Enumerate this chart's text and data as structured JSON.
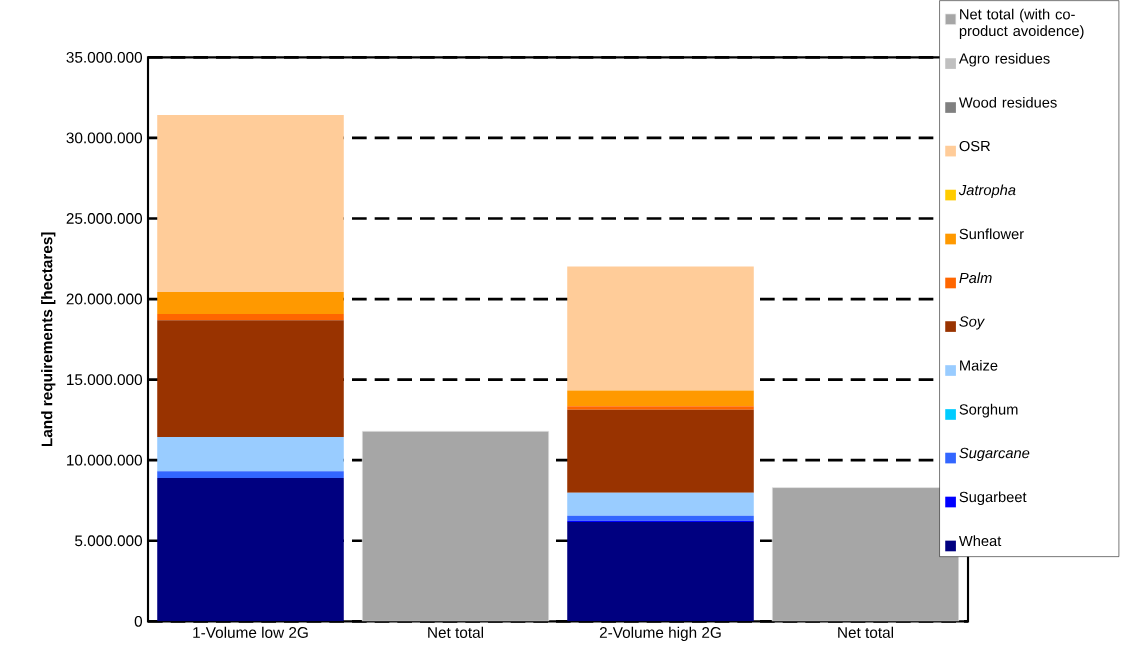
{
  "chart_data": {
    "type": "bar",
    "stacked": true,
    "ylabel": "Land requirements [hectares]",
    "categories": [
      "1-Volume low 2G",
      "Net total",
      "2-Volume high 2G",
      "Net total"
    ],
    "series": [
      {
        "name": "Wheat",
        "color": "#000080",
        "values": [
          8900000,
          null,
          6170000,
          null
        ]
      },
      {
        "name": "Sugarbeet",
        "color": "#0000ff",
        "values": [
          0,
          null,
          70000,
          null
        ]
      },
      {
        "name": "*Sugarcane*",
        "color": "#3366ff",
        "values": [
          420000,
          null,
          310000,
          null
        ]
      },
      {
        "name": "Sorghum",
        "color": "#00ccff",
        "values": [
          0,
          null,
          0,
          null
        ]
      },
      {
        "name": "Maize",
        "color": "#99ccff",
        "values": [
          2120000,
          null,
          1430000,
          null
        ]
      },
      {
        "name": "*Soy*",
        "color": "#993300",
        "values": [
          7250000,
          null,
          5150000,
          null
        ]
      },
      {
        "name": "*Palm*",
        "color": "#ff6600",
        "values": [
          380000,
          null,
          210000,
          null
        ]
      },
      {
        "name": "Sunflower",
        "color": "#ff9900",
        "values": [
          1360000,
          null,
          980000,
          null
        ]
      },
      {
        "name": "*Jatropha*",
        "color": "#ffcc00",
        "values": [
          0,
          null,
          0,
          null
        ]
      },
      {
        "name": "OSR",
        "color": "#ffcc99",
        "values": [
          10990000,
          null,
          7700000,
          null
        ]
      },
      {
        "name": "Wood residues",
        "color": "#808080",
        "values": [
          0,
          null,
          0,
          null
        ]
      },
      {
        "name": "Agro residues",
        "color": "#c0c0c0",
        "values": [
          0,
          null,
          0,
          null
        ]
      },
      {
        "name": "Net total (with co-product avoidence)",
        "color": "#a6a6a6",
        "values": [
          null,
          11800000,
          null,
          8300000
        ]
      }
    ],
    "ylim": [
      0,
      35000000
    ],
    "yticks": [
      0,
      {
        "value": 5000000,
        "label": "5.000.000"
      },
      {
        "value": 10000000,
        "label": "10.000.000"
      },
      {
        "value": 15000000,
        "label": "15.000.000"
      },
      {
        "value": 20000000,
        "label": "20.000.000"
      },
      {
        "value": 25000000,
        "label": "25.000.000"
      },
      {
        "value": 30000000,
        "label": "30.000.000"
      },
      {
        "value": 35000000,
        "label": "35.000.000"
      }
    ],
    "grid": "y",
    "legend": "right"
  }
}
